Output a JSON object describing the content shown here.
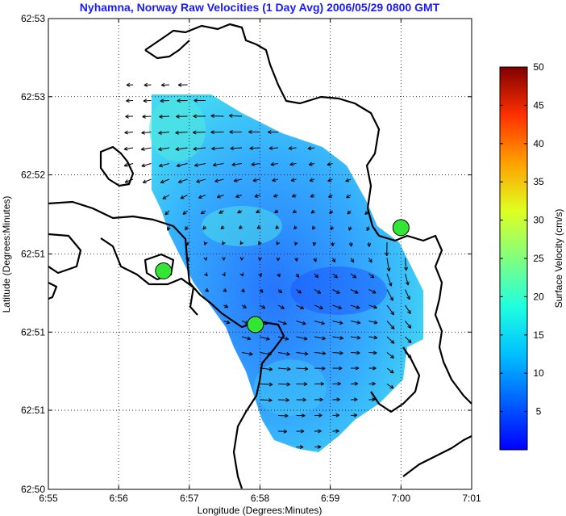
{
  "chart_data": {
    "type": "vector-field-map",
    "title": "Nyhamna, Norway Raw Velocities (1 Day Avg) 2006/05/29 0800 GMT",
    "xlabel": "Longitude (Degrees:Minutes)",
    "ylabel": "Latitude (Degrees:Minutes)",
    "xlim": [
      6.9167,
      7.0167
    ],
    "ylim": [
      62.8333,
      62.8833
    ],
    "x_ticks": [
      {
        "value": 6.9167,
        "label": "6:55"
      },
      {
        "value": 6.9333,
        "label": "6:56"
      },
      {
        "value": 6.95,
        "label": "6:57"
      },
      {
        "value": 6.9667,
        "label": "6:58"
      },
      {
        "value": 6.9833,
        "label": "6:59"
      },
      {
        "value": 7.0,
        "label": "7:00"
      },
      {
        "value": 7.0167,
        "label": "7:01"
      }
    ],
    "y_ticks": [
      {
        "value": 62.8333,
        "label": "62:50"
      },
      {
        "value": 62.8417,
        "label": "62:51"
      },
      {
        "value": 62.85,
        "label": "62:51"
      },
      {
        "value": 62.8583,
        "label": "62:51"
      },
      {
        "value": 62.8667,
        "label": "62:52"
      },
      {
        "value": 62.875,
        "label": "62:53"
      },
      {
        "value": 62.8833,
        "label": "62:53"
      }
    ],
    "grid": true,
    "colorbar": {
      "label": "Surface Velocity (cm/s)",
      "range": [
        0,
        50
      ],
      "ticks": [
        5,
        10,
        15,
        20,
        25,
        30,
        35,
        40,
        45,
        50
      ],
      "colormap": "jet"
    },
    "stations": [
      {
        "lon": 6.9439,
        "lat": 62.8565
      },
      {
        "lon": 6.9656,
        "lat": 62.8508
      },
      {
        "lon": 7.0,
        "lat": 62.8611
      }
    ],
    "field": {
      "approx_speed_range_cms": [
        4,
        10
      ],
      "dominant_direction": "westward in the north, eastward in the south"
    },
    "colors": {
      "title": "#1a1aff",
      "station": "#33e633",
      "coastline": "#000000"
    }
  }
}
